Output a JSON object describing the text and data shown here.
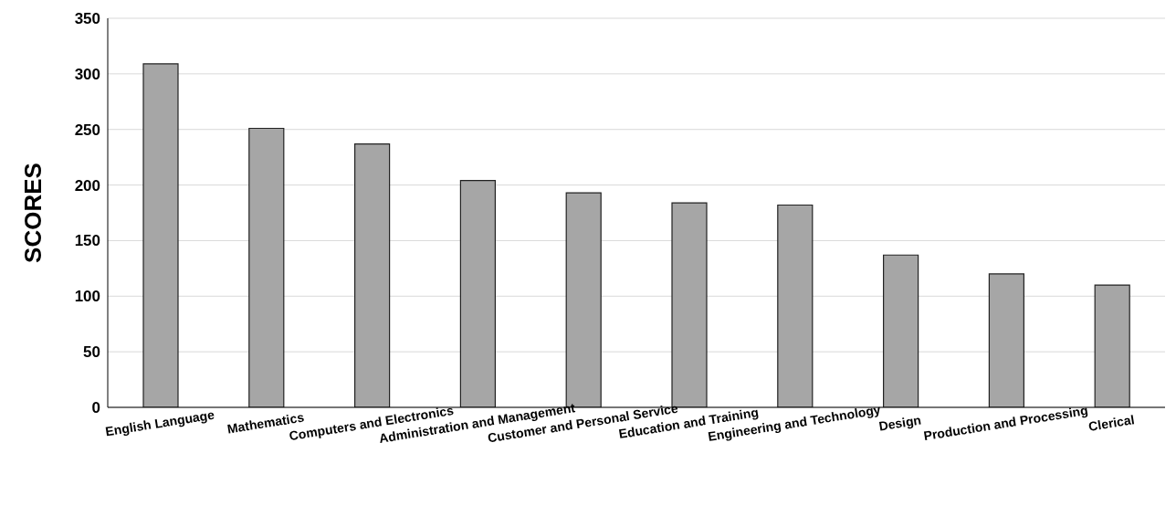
{
  "chart_data": {
    "type": "bar",
    "ylabel": "SCORES",
    "categories": [
      "English Language",
      "Mathematics",
      "Computers and Electronics",
      "Administration and Management",
      "Customer and Personal Service",
      "Education and Training",
      "Engineering and Technology",
      "Design",
      "Production and Processing",
      "Clerical"
    ],
    "values": [
      309,
      251,
      237,
      204,
      193,
      184,
      182,
      137,
      120,
      110
    ],
    "color": "#a6a6a6",
    "ylim": [
      0,
      350
    ],
    "yticks": [
      0,
      50,
      100,
      150,
      200,
      250,
      300,
      350
    ],
    "grid": "y"
  }
}
